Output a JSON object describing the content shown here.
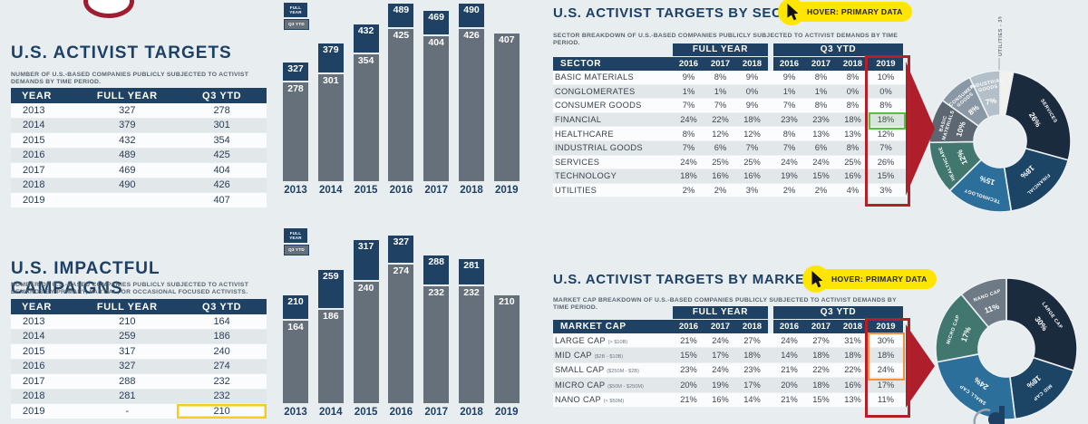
{
  "colors": {
    "background": "#e8edf0",
    "navy": "#1e4164",
    "bar_gray": "#66707a",
    "red_highlight": "#b51f29",
    "green_highlight": "#55c13e",
    "orange_highlight": "#ef913e",
    "yellow_highlight": "#f2cf1d",
    "badge_yellow": "#ffe500"
  },
  "badge": {
    "label": "HOVER: PRIMARY DATA"
  },
  "legend": {
    "full_year": "FULL YEAR",
    "q3_ytd": "Q3 YTD"
  },
  "activist_targets": {
    "title": "U.S. ACTIVIST TARGETS",
    "subtitle": "NUMBER OF U.S.-BASED COMPANIES PUBLICLY SUBJECTED TO ACTIVIST DEMANDS BY TIME PERIOD.",
    "columns": [
      "YEAR",
      "FULL YEAR",
      "Q3 YTD"
    ],
    "rows": [
      [
        "2013",
        "327",
        "278"
      ],
      [
        "2014",
        "379",
        "301"
      ],
      [
        "2015",
        "432",
        "354"
      ],
      [
        "2016",
        "489",
        "425"
      ],
      [
        "2017",
        "469",
        "404"
      ],
      [
        "2018",
        "490",
        "426"
      ],
      [
        "2019",
        "",
        "407"
      ]
    ]
  },
  "impactful_campaigns": {
    "title": "U.S. IMPACTFUL CAMPAIGNS",
    "subtitle": "NUMBER OF U.S.-BASED COMPANIES PUBLICLY SUBJECTED TO ACTIVIST DEMANDS BY PRIMARY, PARTIAL, OR OCCASIONAL FOCUSED ACTIVISTS.",
    "columns": [
      "YEAR",
      "FULL YEAR",
      "Q3 YTD"
    ],
    "rows": [
      [
        "2013",
        "210",
        "164"
      ],
      [
        "2014",
        "259",
        "186"
      ],
      [
        "2015",
        "317",
        "240"
      ],
      [
        "2016",
        "327",
        "274"
      ],
      [
        "2017",
        "288",
        "232"
      ],
      [
        "2018",
        "281",
        "232"
      ],
      [
        "2019",
        "-",
        "210"
      ]
    ],
    "highlight": {
      "row_index": 6,
      "col_index": 2
    }
  },
  "sector_table": {
    "title": "U.S. ACTIVIST TARGETS BY SECTOR",
    "subtitle": "SECTOR BREAKDOWN OF U.S.-BASED COMPANIES PUBLICLY SUBJECTED TO ACTIVIST DEMANDS BY TIME PERIOD.",
    "col_header": "SECTOR",
    "group_headers": [
      "FULL YEAR",
      "Q3 YTD"
    ],
    "year_cols": [
      "2016",
      "2017",
      "2018",
      "2016",
      "2017",
      "2018",
      "2019"
    ],
    "rows": [
      {
        "label": "BASIC MATERIALS",
        "values": [
          "9%",
          "8%",
          "9%",
          "9%",
          "8%",
          "8%",
          "10%"
        ]
      },
      {
        "label": "CONGLOMERATES",
        "values": [
          "1%",
          "1%",
          "0%",
          "1%",
          "1%",
          "0%",
          "0%"
        ]
      },
      {
        "label": "CONSUMER GOODS",
        "values": [
          "7%",
          "7%",
          "9%",
          "7%",
          "8%",
          "8%",
          "8%"
        ]
      },
      {
        "label": "FINANCIAL",
        "values": [
          "24%",
          "22%",
          "18%",
          "23%",
          "23%",
          "18%",
          "18%"
        ],
        "highlight_2019": true
      },
      {
        "label": "HEALTHCARE",
        "values": [
          "8%",
          "12%",
          "12%",
          "8%",
          "13%",
          "13%",
          "12%"
        ]
      },
      {
        "label": "INDUSTRIAL GOODS",
        "values": [
          "7%",
          "6%",
          "7%",
          "7%",
          "6%",
          "8%",
          "7%"
        ]
      },
      {
        "label": "SERVICES",
        "values": [
          "24%",
          "25%",
          "25%",
          "24%",
          "24%",
          "25%",
          "26%"
        ]
      },
      {
        "label": "TECHNOLOGY",
        "values": [
          "18%",
          "16%",
          "16%",
          "19%",
          "15%",
          "16%",
          "15%"
        ]
      },
      {
        "label": "UTILITIES",
        "values": [
          "2%",
          "2%",
          "3%",
          "2%",
          "2%",
          "4%",
          "3%"
        ]
      }
    ]
  },
  "marketcap_table": {
    "title": "U.S. ACTIVIST TARGETS BY MARKET CAP",
    "subtitle": "MARKET CAP BREAKDOWN OF U.S.-BASED COMPANIES PUBLICLY SUBJECTED TO ACTIVIST DEMANDS BY TIME PERIOD.",
    "col_header": "MARKET CAP",
    "group_headers": [
      "FULL YEAR",
      "Q3 YTD"
    ],
    "year_cols": [
      "2016",
      "2017",
      "2018",
      "2016",
      "2017",
      "2018",
      "2019"
    ],
    "rows": [
      {
        "label": "LARGE CAP",
        "sub": "(> $10B)",
        "values": [
          "21%",
          "24%",
          "27%",
          "24%",
          "27%",
          "31%",
          "30%"
        ]
      },
      {
        "label": "MID CAP",
        "sub": "($2B - $10B)",
        "values": [
          "15%",
          "17%",
          "18%",
          "14%",
          "18%",
          "18%",
          "18%"
        ]
      },
      {
        "label": "SMALL CAP",
        "sub": "($250M - $2B)",
        "values": [
          "23%",
          "24%",
          "23%",
          "21%",
          "22%",
          "22%",
          "24%"
        ]
      },
      {
        "label": "MICRO CAP",
        "sub": "($50M - $250M)",
        "values": [
          "20%",
          "19%",
          "17%",
          "20%",
          "18%",
          "16%",
          "17%"
        ]
      },
      {
        "label": "NANO CAP",
        "sub": "(< $50M)",
        "values": [
          "21%",
          "16%",
          "14%",
          "21%",
          "15%",
          "13%",
          "11%"
        ]
      }
    ],
    "orange_box_rows": [
      0,
      1,
      2
    ]
  },
  "chart_data": [
    {
      "type": "bar",
      "name": "us-activist-targets-by-year",
      "categories": [
        "2013",
        "2014",
        "2015",
        "2016",
        "2017",
        "2018",
        "2019"
      ],
      "series": [
        {
          "name": "FULL YEAR",
          "color": "#1e4164",
          "values": [
            327,
            379,
            432,
            489,
            469,
            490,
            null
          ]
        },
        {
          "name": "Q3 YTD",
          "color": "#66707a",
          "values": [
            278,
            301,
            354,
            425,
            404,
            426,
            407
          ]
        }
      ],
      "ylim": [
        0,
        500
      ],
      "legend_position": "top-left"
    },
    {
      "type": "bar",
      "name": "us-impactful-campaigns-by-year",
      "categories": [
        "2013",
        "2014",
        "2015",
        "2016",
        "2017",
        "2018",
        "2019"
      ],
      "series": [
        {
          "name": "FULL YEAR",
          "color": "#1e4164",
          "values": [
            210,
            259,
            317,
            327,
            288,
            281,
            null
          ]
        },
        {
          "name": "Q3 YTD",
          "color": "#66707a",
          "values": [
            164,
            186,
            240,
            274,
            232,
            232,
            210
          ]
        }
      ],
      "ylim": [
        0,
        362
      ],
      "legend_position": "top-left"
    },
    {
      "type": "donut",
      "name": "sector-mix-2019",
      "slices": [
        {
          "label": "UTILITIES",
          "pct": 3,
          "color": "#f1f2ee",
          "outside_label": "UTILITIES - 3%"
        },
        {
          "label": "SERVICES",
          "pct": 26,
          "color": "#1b2b3e"
        },
        {
          "label": "FINANCIAL",
          "pct": 18,
          "color": "#1c4465"
        },
        {
          "label": "TECHNOLOGY",
          "pct": 15,
          "color": "#2d6f9b"
        },
        {
          "label": "HEALTHCARE",
          "pct": 12,
          "color": "#41776e"
        },
        {
          "label": "BASIC MATERIALS",
          "pct": 10,
          "color": "#5d6771"
        },
        {
          "label": "CONSUMER GOODS",
          "pct": 8,
          "color": "#8a98a5"
        },
        {
          "label": "INDUSTRIAL GOODS",
          "pct": 7,
          "color": "#b3bfc9"
        }
      ]
    },
    {
      "type": "donut",
      "name": "marketcap-mix-2019",
      "slices": [
        {
          "label": "LARGE CAP",
          "pct": 30,
          "color": "#1b2b3e"
        },
        {
          "label": "MID CAP",
          "pct": 18,
          "color": "#1c4465"
        },
        {
          "label": "SMALL CAP",
          "pct": 24,
          "color": "#2d6f9b"
        },
        {
          "label": "MICRO CAP",
          "pct": 17,
          "color": "#41776e"
        },
        {
          "label": "NANO CAP",
          "pct": 11,
          "color": "#6e7a85"
        }
      ]
    }
  ]
}
